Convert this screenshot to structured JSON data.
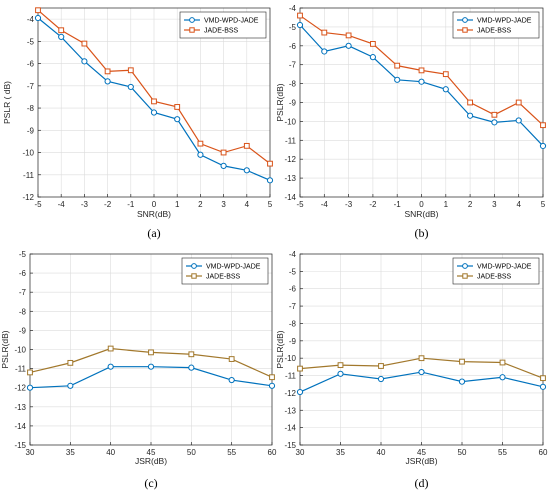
{
  "chart_data": [
    {
      "type": "line",
      "panel_label": "(a)",
      "xlabel": "SNR(dB)",
      "ylabel": "PSLR ( dB)",
      "xlim": [
        -5,
        5
      ],
      "ylim": [
        -12,
        -3.5
      ],
      "xticks": [
        -5,
        -4,
        -3,
        -2,
        -1,
        0,
        1,
        2,
        3,
        4,
        5
      ],
      "yticks": [
        -12,
        -11,
        -10,
        -9,
        -8,
        -7,
        -6,
        -5,
        -4
      ],
      "x": [
        -5,
        -4,
        -3,
        -2,
        -1,
        0,
        1,
        2,
        3,
        4,
        5
      ],
      "grid": true,
      "legend_position": "top-right",
      "series": [
        {
          "name": "VMD-WPD-JADE",
          "color": "#0072BD",
          "marker": "circle",
          "values": [
            -3.95,
            -4.8,
            -5.9,
            -6.8,
            -7.05,
            -8.2,
            -8.5,
            -10.1,
            -10.6,
            -10.8,
            -11.25
          ]
        },
        {
          "name": "JADE-BSS",
          "color": "#D95319",
          "marker": "square",
          "values": [
            -3.6,
            -4.5,
            -5.1,
            -6.35,
            -6.3,
            -7.7,
            -7.95,
            -9.6,
            -10.0,
            -9.7,
            -10.5
          ]
        }
      ]
    },
    {
      "type": "line",
      "panel_label": "(b)",
      "xlabel": "SNR(dB)",
      "ylabel": "PSLR(dB)",
      "xlim": [
        -5,
        5
      ],
      "ylim": [
        -14,
        -4
      ],
      "xticks": [
        -5,
        -4,
        -3,
        -2,
        -1,
        0,
        1,
        2,
        3,
        4,
        5
      ],
      "yticks": [
        -14,
        -13,
        -12,
        -11,
        -10,
        -9,
        -8,
        -7,
        -6,
        -5,
        -4
      ],
      "x": [
        -5,
        -4,
        -3,
        -2,
        -1,
        0,
        1,
        2,
        3,
        4,
        5
      ],
      "grid": true,
      "legend_position": "top-right",
      "series": [
        {
          "name": "VMD-WPD-JADE",
          "color": "#0072BD",
          "marker": "circle",
          "values": [
            -4.9,
            -6.3,
            -6.0,
            -6.6,
            -7.8,
            -7.9,
            -8.3,
            -9.7,
            -10.05,
            -9.95,
            -11.3
          ]
        },
        {
          "name": "JADE-BSS",
          "color": "#D95319",
          "marker": "square",
          "values": [
            -4.4,
            -5.3,
            -5.45,
            -5.9,
            -7.05,
            -7.3,
            -7.5,
            -9.0,
            -9.65,
            -9.0,
            -10.2
          ]
        }
      ]
    },
    {
      "type": "line",
      "panel_label": "(c)",
      "xlabel": "JSR(dB)",
      "ylabel": "PSLR(dB)",
      "xlim": [
        30,
        60
      ],
      "ylim": [
        -15,
        -5
      ],
      "xticks": [
        30,
        35,
        40,
        45,
        50,
        55,
        60
      ],
      "yticks": [
        -15,
        -14,
        -13,
        -12,
        -11,
        -10,
        -9,
        -8,
        -7,
        -6,
        -5
      ],
      "x": [
        30,
        35,
        40,
        45,
        50,
        55,
        60
      ],
      "grid": true,
      "legend_position": "top-right",
      "series": [
        {
          "name": "VMD-WPD-JADE",
          "color": "#0072BD",
          "marker": "circle",
          "values": [
            -12.0,
            -11.9,
            -10.9,
            -10.9,
            -10.95,
            -11.6,
            -11.9
          ]
        },
        {
          "name": "JADE-BSS",
          "color": "#A2782C",
          "marker": "square",
          "values": [
            -11.2,
            -10.7,
            -9.95,
            -10.15,
            -10.25,
            -10.5,
            -11.45
          ]
        }
      ]
    },
    {
      "type": "line",
      "panel_label": "(d)",
      "xlabel": "JSR(dB)",
      "ylabel": "PSLR(dB)",
      "xlim": [
        30,
        60
      ],
      "ylim": [
        -15,
        -4
      ],
      "xticks": [
        30,
        35,
        40,
        45,
        50,
        55,
        60
      ],
      "yticks": [
        -15,
        -14,
        -13,
        -12,
        -11,
        -10,
        -9,
        -8,
        -7,
        -6,
        -5,
        -4
      ],
      "x": [
        30,
        35,
        40,
        45,
        50,
        55,
        60
      ],
      "grid": true,
      "legend_position": "top-right",
      "series": [
        {
          "name": "VMD-WPD-JADE",
          "color": "#0072BD",
          "marker": "circle",
          "values": [
            -11.95,
            -10.9,
            -11.2,
            -10.8,
            -11.35,
            -11.1,
            -11.65
          ]
        },
        {
          "name": "JADE-BSS",
          "color": "#A2782C",
          "marker": "square",
          "values": [
            -10.6,
            -10.4,
            -10.45,
            -10.0,
            -10.2,
            -10.25,
            -11.15
          ]
        }
      ]
    }
  ]
}
